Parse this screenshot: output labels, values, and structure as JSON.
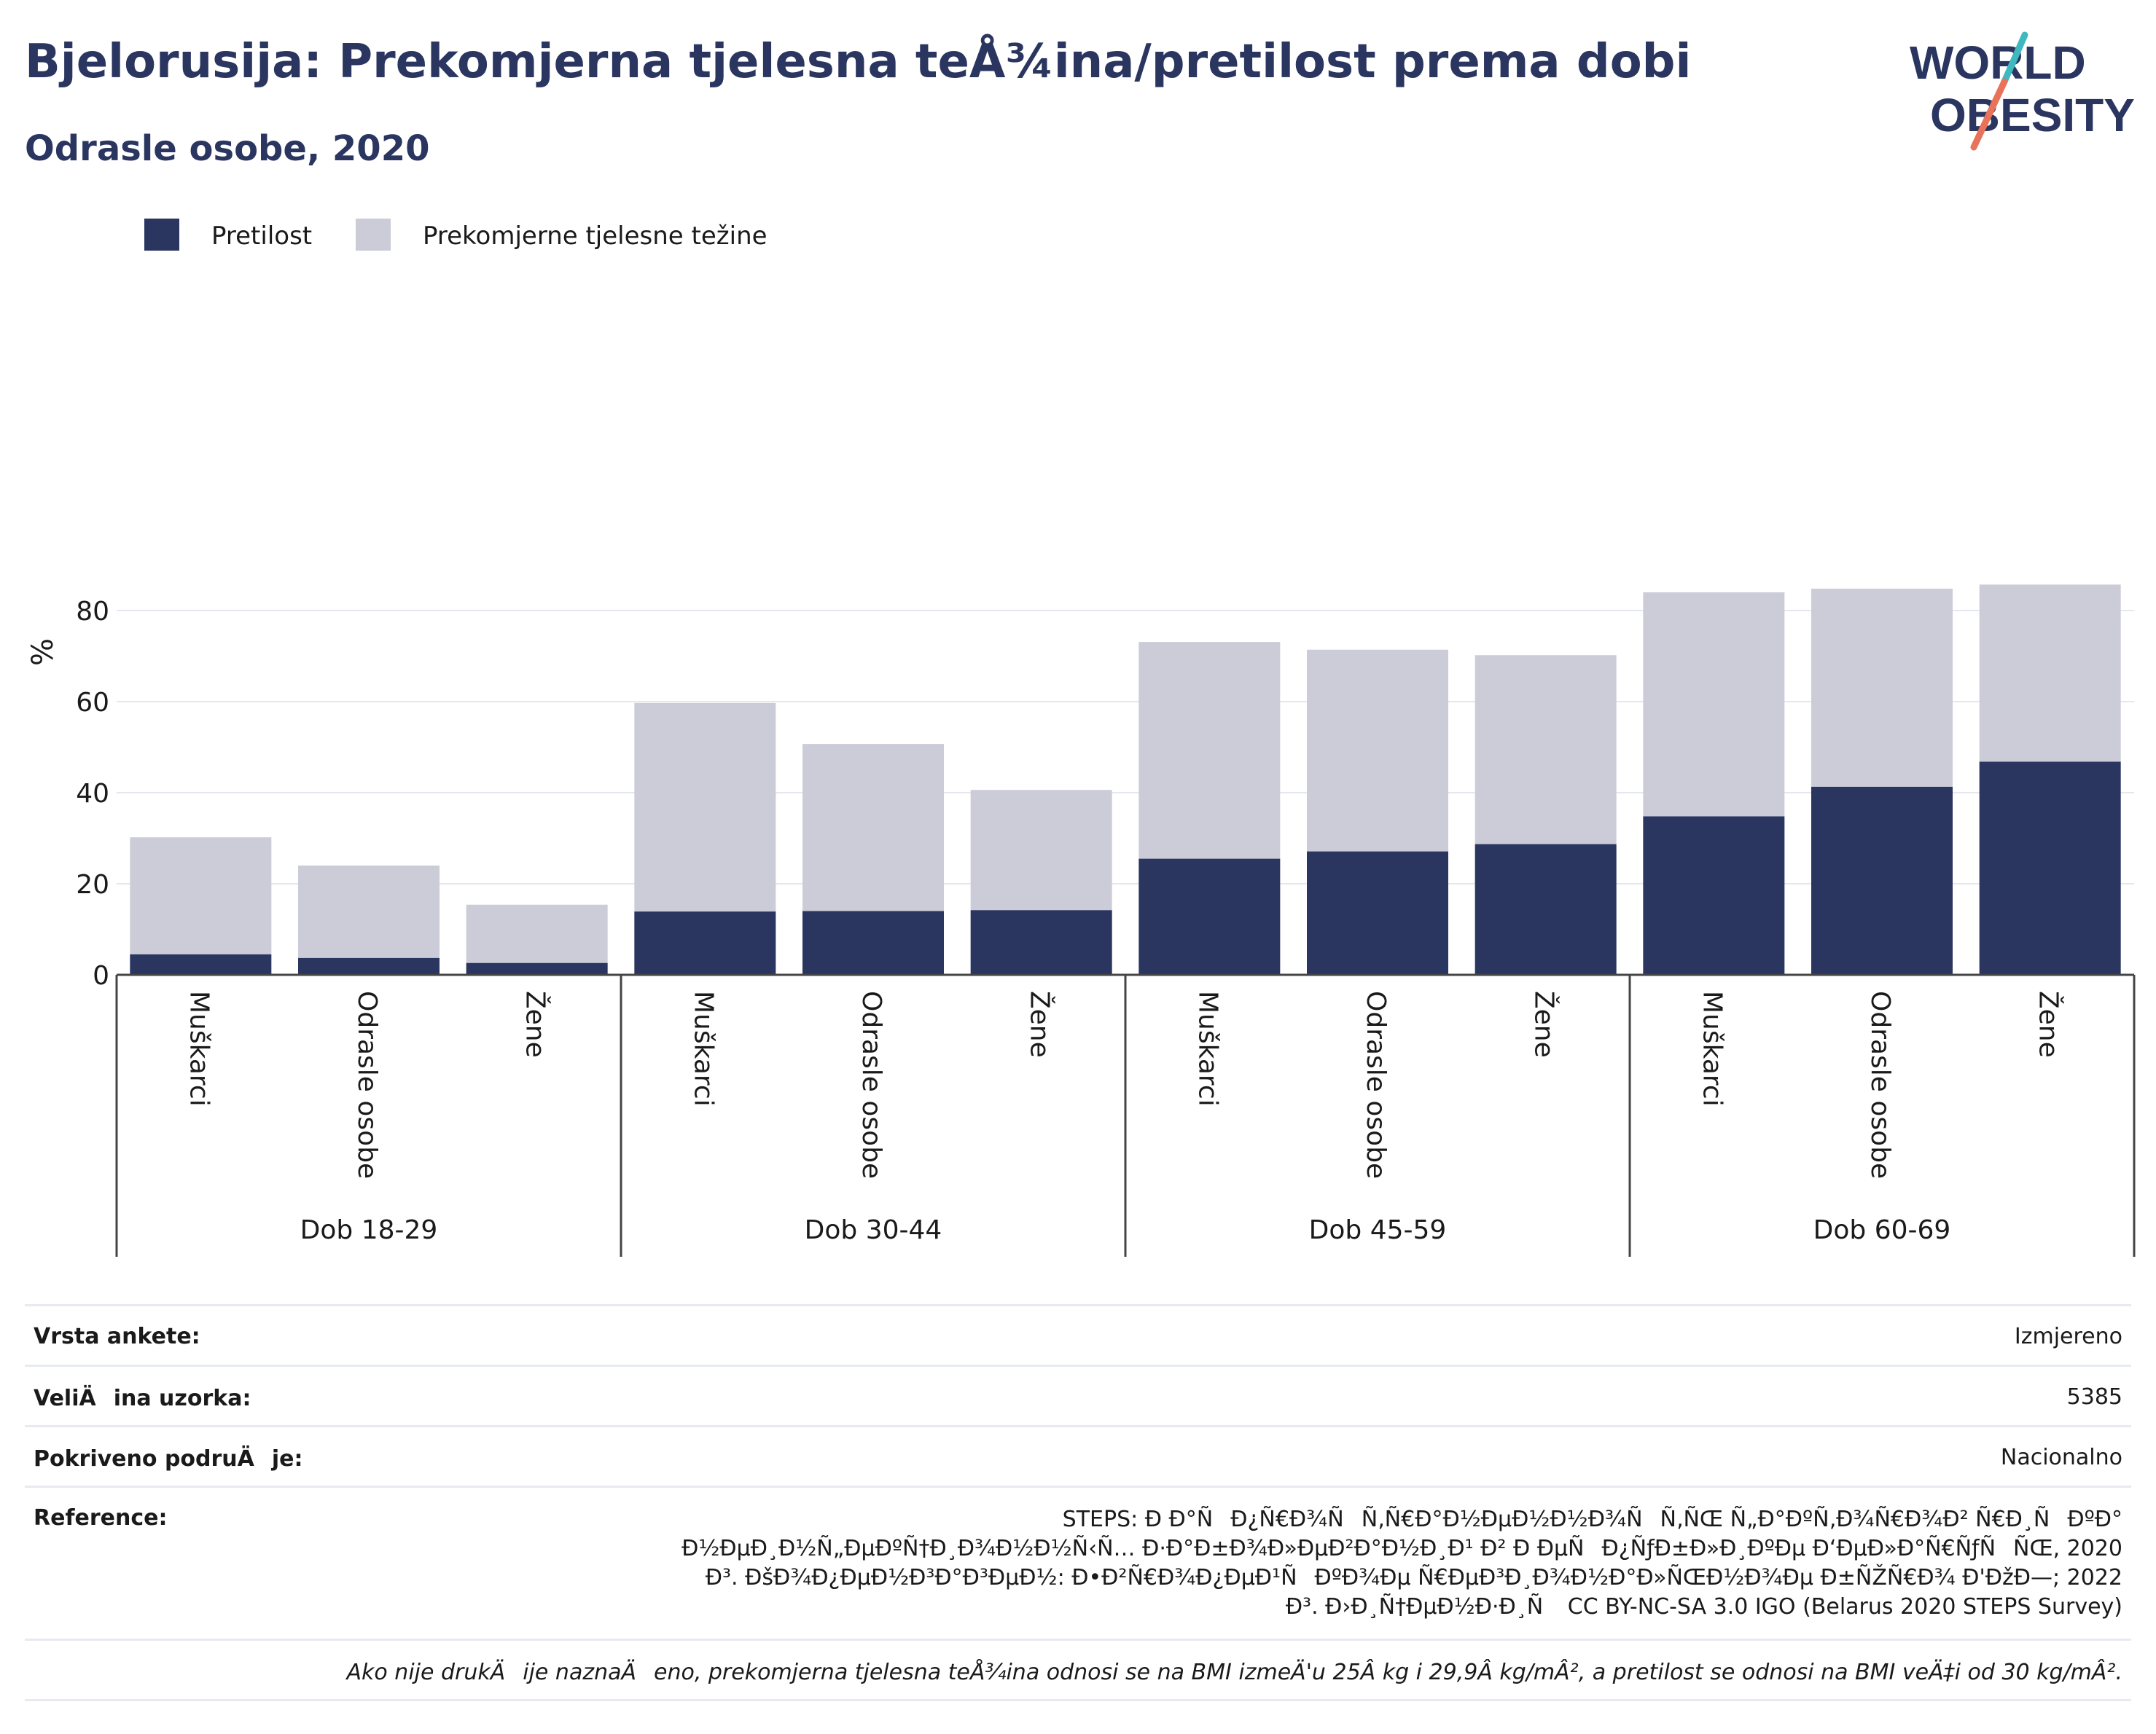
{
  "title": "Bjelorusija: Prekomjerna tjelesna teÅ¾ina/pretilost prema dobi",
  "subtitle": "Odrasle osobe, 2020",
  "logo": {
    "line1": "WORLD",
    "line2": "OBESITY",
    "accent_color": "#e8735a",
    "accent_color2": "#3fb8c0",
    "text_color": "#2a3560"
  },
  "colors": {
    "obesity": "#2a3560",
    "overweight": "#cbccd8",
    "grid": "#e6e7ee",
    "axis": "#444444"
  },
  "chart_data": {
    "type": "bar",
    "stacked": true,
    "ylabel": "%",
    "ylim": [
      0,
      90
    ],
    "yticks": [
      0,
      20,
      40,
      60,
      80
    ],
    "grid": true,
    "legend": {
      "placement": "top-left",
      "entries": [
        "Pretilost",
        "Prekomjerne tjelesne težine"
      ]
    },
    "groups": [
      {
        "label": "Dob 18-29",
        "categories": [
          "Muškarci",
          "Odrasle osobe",
          "Žene"
        ]
      },
      {
        "label": "Dob 30-44",
        "categories": [
          "Muškarci",
          "Odrasle osobe",
          "Žene"
        ]
      },
      {
        "label": "Dob 45-59",
        "categories": [
          "Muškarci",
          "Odrasle osobe",
          "Žene"
        ]
      },
      {
        "label": "Dob 60-69",
        "categories": [
          "Muškarci",
          "Odrasle osobe",
          "Žene"
        ]
      }
    ],
    "series": [
      {
        "name": "Pretilost",
        "values": [
          4.5,
          3.7,
          2.6,
          13.9,
          14.0,
          14.2,
          25.5,
          27.1,
          28.7,
          34.8,
          41.3,
          46.8
        ]
      },
      {
        "name": "Prekomjerne tjelesne težine",
        "values": [
          25.7,
          20.3,
          12.8,
          45.8,
          36.7,
          26.4,
          47.6,
          44.3,
          41.5,
          49.2,
          43.5,
          38.9
        ]
      }
    ]
  },
  "meta": {
    "survey_type": {
      "label": "Vrsta ankete:",
      "value": "Izmjereno"
    },
    "sample_size": {
      "label": "VeliÄina uzorka:",
      "value": "5385"
    },
    "coverage": {
      "label": "Pokriveno podruÄje:",
      "value": "Nacionalno"
    },
    "reference": {
      "label": "Reference:",
      "lines": [
        "STEPS: Ð Ð°ÑÐ¿Ñ€Ð¾ÑÑ‚Ñ€Ð°Ð½ÐµÐ½Ð½Ð¾ÑÑ‚ÑŒ Ñ„Ð°ÐºÑ‚Ð¾Ñ€Ð¾Ð² Ñ€Ð¸ÑÐºÐ°",
        "Ð½ÐµÐ¸Ð½Ñ„ÐµÐºÑ†Ð¸Ð¾Ð½Ð½Ñ‹Ñ… Ð·Ð°Ð±Ð¾Ð»ÐµÐ²Ð°Ð½Ð¸Ð¹ Ð² Ð ÐµÑÐ¿ÑƒÐ±Ð»Ð¸ÐºÐµ Ð‘ÐµÐ»Ð°Ñ€ÑƒÑÑŒ, 2020",
        "Ð³. ÐšÐ¾Ð¿ÐµÐ½Ð³Ð°Ð³ÐµÐ½: Ð•Ð²Ñ€Ð¾Ð¿ÐµÐ¹ÑÐºÐ¾Ðµ Ñ€ÐµÐ³Ð¸Ð¾Ð½Ð°Ð»ÑŒÐ½Ð¾Ðµ Ð±ÑŽÑ€Ð¾ Ð'ÐžÐ—; 2022",
        "Ð³. Ð›Ð¸Ñ†ÐµÐ½Ð·Ð¸Ñ CC BY-NC-SA 3.0 IGO (Belarus 2020 STEPS Survey)"
      ]
    },
    "footnote": "Ako nije drukÄije naznaÄeno, prekomjerna tjelesna teÅ¾ina odnosi se na BMI izmeÄ'u 25Â kg i 29,9Â kg/mÂ², a pretilost se odnosi na BMI veÄ‡i od 30 kg/mÂ²."
  }
}
